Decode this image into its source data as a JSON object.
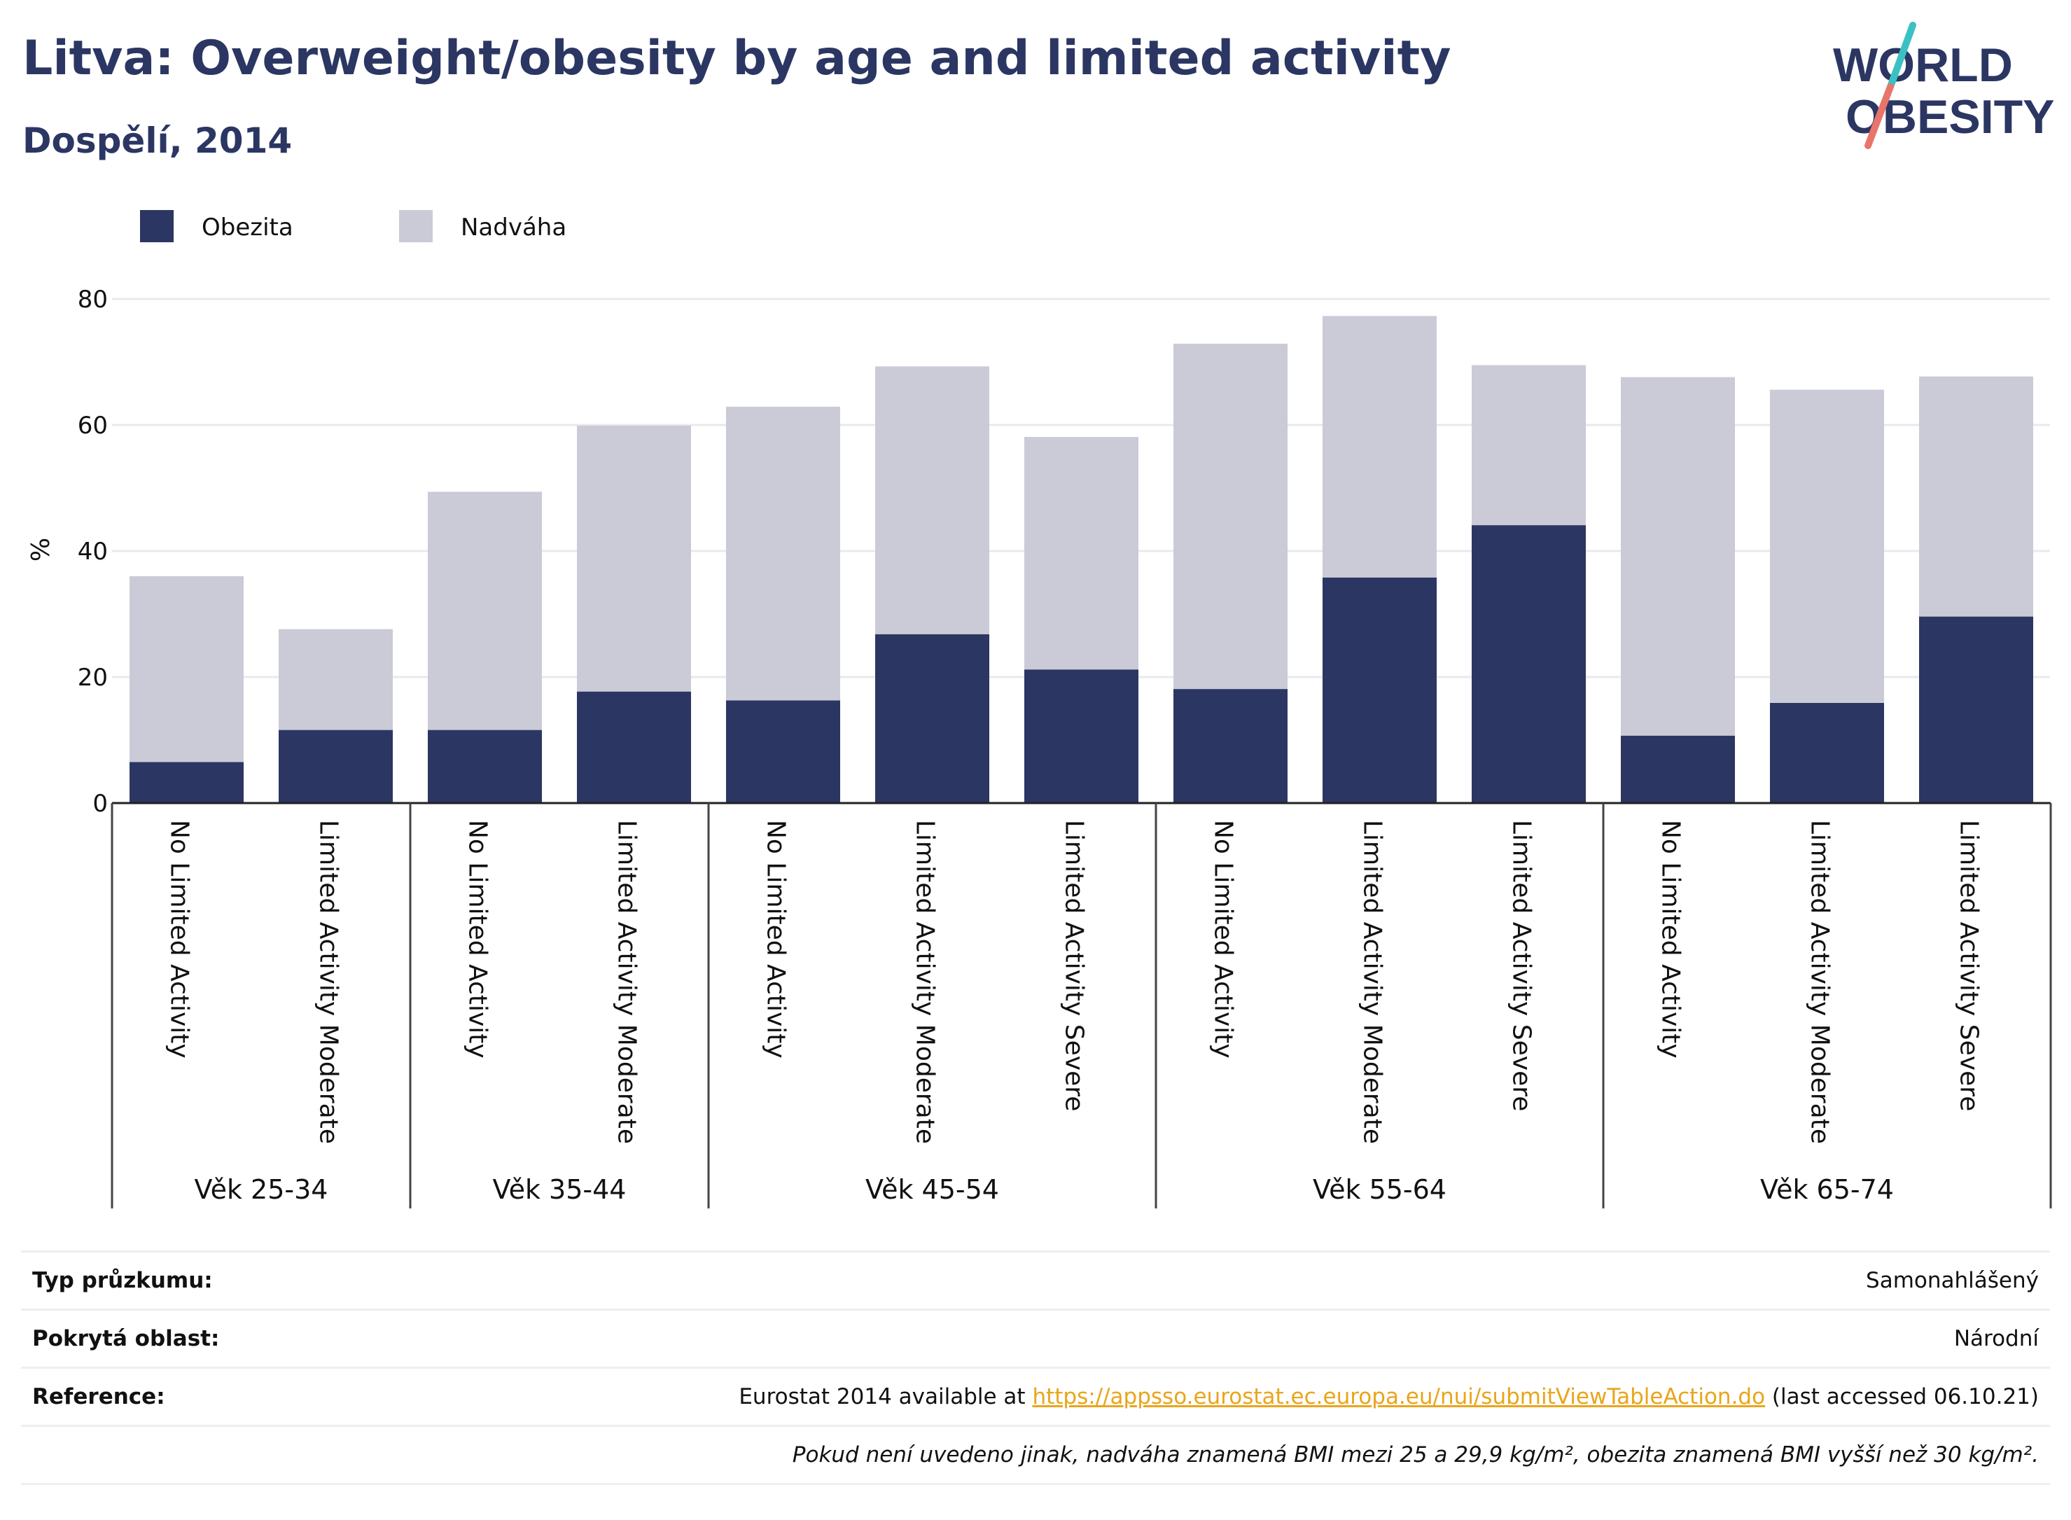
{
  "header": {
    "title": "Litva: Overweight/obesity by age and limited activity",
    "subtitle": "Dospělí, 2014"
  },
  "logo": {
    "line1": "WORLD",
    "line2": "OBESITY"
  },
  "colors": {
    "obesity": "#2b3663",
    "overweight": "#cacbd7",
    "grid": "#e9e9ee",
    "link": "#e9a51b"
  },
  "chart_data": {
    "type": "bar",
    "stacked": true,
    "ylabel": "%",
    "ylim": [
      0,
      80
    ],
    "yticks": [
      0,
      20,
      40,
      60,
      80
    ],
    "grid": true,
    "legend_position": "top-left",
    "groups": [
      {
        "label": "Věk 25-34",
        "categories": [
          "No Limited Activity",
          "Limited Activity Moderate"
        ]
      },
      {
        "label": "Věk 35-44",
        "categories": [
          "No Limited Activity",
          "Limited Activity Moderate"
        ]
      },
      {
        "label": "Věk 45-54",
        "categories": [
          "No Limited Activity",
          "Limited Activity Moderate",
          "Limited Activity Severe"
        ]
      },
      {
        "label": "Věk 55-64",
        "categories": [
          "No Limited Activity",
          "Limited Activity Moderate",
          "Limited Activity Severe"
        ]
      },
      {
        "label": "Věk 65-74",
        "categories": [
          "No Limited Activity",
          "Limited Activity Moderate",
          "Limited Activity Severe"
        ]
      }
    ],
    "series": [
      {
        "name": "Obezita",
        "color": "#2b3663",
        "values": [
          6.5,
          11.6,
          11.6,
          17.7,
          16.3,
          26.8,
          21.2,
          18.1,
          35.8,
          44.1,
          10.7,
          15.9,
          29.6
        ]
      },
      {
        "name": "Nadváha",
        "color": "#cacbd7",
        "values": [
          29.5,
          16.0,
          37.8,
          42.2,
          46.6,
          42.5,
          36.9,
          54.8,
          41.5,
          25.4,
          56.9,
          49.7,
          38.1
        ]
      }
    ]
  },
  "footer": {
    "survey_label": "Typ průzkumu:",
    "survey_value": "Samonahlášený",
    "area_label": "Pokrytá oblast:",
    "area_value": "Národní",
    "reference_label": "Reference:",
    "reference_prefix": "Eurostat 2014 available at ",
    "reference_link": "https://appsso.eurostat.ec.europa.eu/nui/submitViewTableAction.do",
    "reference_suffix": " (last accessed 06.10.21)",
    "note": "Pokud není uvedeno jinak, nadváha znamená BMI mezi 25 a 29,9 kg/m², obezita znamená BMI vyšší než 30 kg/m²."
  }
}
